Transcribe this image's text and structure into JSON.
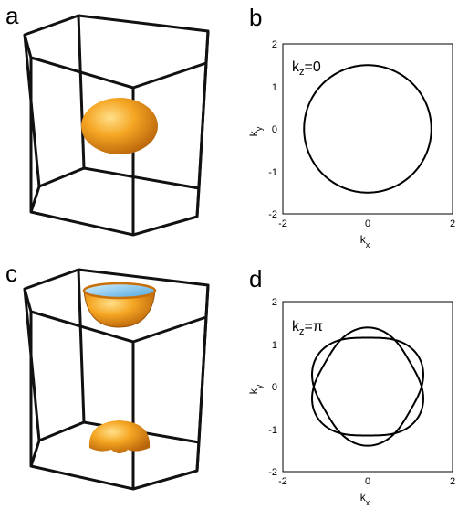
{
  "panels": {
    "a": {
      "letter": "a"
    },
    "b": {
      "letter": "b",
      "annotation": {
        "base": "k",
        "sub": "z",
        "rest": "=0"
      }
    },
    "c": {
      "letter": "c"
    },
    "d": {
      "letter": "d",
      "annotation": {
        "base": "k",
        "sub": "z",
        "rest": "=π"
      }
    }
  },
  "axes": {
    "xlabel": {
      "base": "k",
      "sub": "x"
    },
    "ylabel": {
      "base": "k",
      "sub": "y"
    },
    "xticks": [
      "-2",
      "0",
      "2"
    ],
    "yticks": [
      "2",
      "1",
      "0",
      "-1",
      "-2"
    ]
  },
  "colors": {
    "frame": "#111111",
    "surface_orange": "#f5a623",
    "surface_highlight": "#ffd36a",
    "surface_shadow": "#c9700a",
    "cap_blue": "#7fc8f0",
    "curve": "#000000"
  },
  "chart_data": [
    {
      "type": "line",
      "panel": "b",
      "description": "circular Fermi surface cross-section",
      "xlim": [
        -2,
        2
      ],
      "ylim": [
        -2,
        2
      ],
      "series": [
        {
          "shape": "circle",
          "radius": 1.5
        }
      ]
    },
    {
      "type": "line",
      "panel": "d",
      "description": "six-lobed (hexagram-like) Fermi surface cross-section",
      "xlim": [
        -2,
        2
      ],
      "ylim": [
        -2,
        2
      ],
      "series": [
        {
          "shape": "star-overlap",
          "r_mean": 1.27,
          "r_amp": 0.12,
          "n_fold": 3
        }
      ]
    }
  ]
}
